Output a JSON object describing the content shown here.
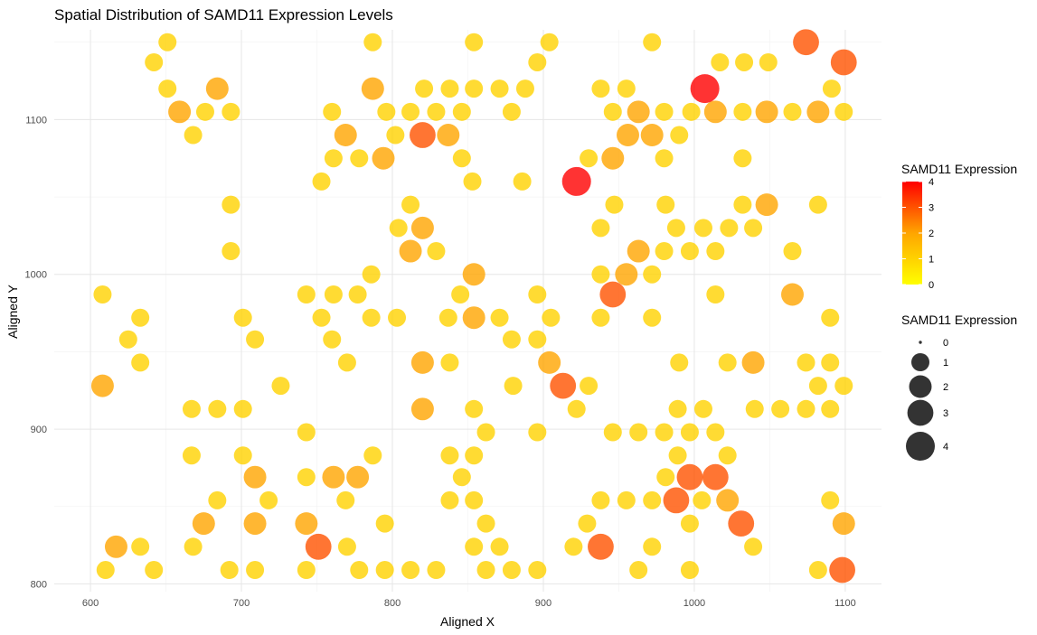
{
  "chart_data": {
    "type": "scatter",
    "title": "Spatial Distribution of SAMD11 Expression Levels",
    "xlabel": "Aligned X",
    "ylabel": "Aligned Y",
    "xlim": [
      576,
      1124
    ],
    "ylim": [
      795,
      1158
    ],
    "xticks": [
      600,
      700,
      800,
      900,
      1000,
      1100
    ],
    "yticks": [
      800,
      900,
      1000,
      1100
    ],
    "grid": true,
    "legend_position": "right",
    "color_legend": {
      "title": "SAMD11 Expression",
      "min": 0,
      "max": 4,
      "ticks": [
        0,
        1,
        2,
        3,
        4
      ],
      "colors": [
        "#FFFF00",
        "#FFA500",
        "#FF0000"
      ]
    },
    "size_legend": {
      "title": "SAMD11 Expression",
      "values": [
        0,
        1,
        2,
        3,
        4
      ]
    },
    "point_opacity": 0.8,
    "points": [
      [
        651,
        1150,
        1
      ],
      [
        787,
        1150,
        1
      ],
      [
        854,
        1150,
        1
      ],
      [
        904,
        1150,
        1
      ],
      [
        972,
        1150,
        1
      ],
      [
        1074,
        1150,
        3
      ],
      [
        642,
        1137,
        1
      ],
      [
        896,
        1137,
        1
      ],
      [
        1017,
        1137,
        1
      ],
      [
        1033,
        1137,
        1
      ],
      [
        1049,
        1137,
        1
      ],
      [
        1099,
        1137,
        3
      ],
      [
        651,
        1120,
        1
      ],
      [
        684,
        1120,
        2
      ],
      [
        787,
        1120,
        2
      ],
      [
        821,
        1120,
        1
      ],
      [
        838,
        1120,
        1
      ],
      [
        854,
        1120,
        1
      ],
      [
        871,
        1120,
        1
      ],
      [
        888,
        1120,
        1
      ],
      [
        938,
        1120,
        1
      ],
      [
        955,
        1120,
        1
      ],
      [
        1007,
        1120,
        4
      ],
      [
        1091,
        1120,
        1
      ],
      [
        659,
        1105,
        2
      ],
      [
        676,
        1105,
        1
      ],
      [
        693,
        1105,
        1
      ],
      [
        760,
        1105,
        1
      ],
      [
        796,
        1105,
        1
      ],
      [
        812,
        1105,
        1
      ],
      [
        829,
        1105,
        1
      ],
      [
        846,
        1105,
        1
      ],
      [
        879,
        1105,
        1
      ],
      [
        946,
        1105,
        1
      ],
      [
        963,
        1105,
        2
      ],
      [
        980,
        1105,
        1
      ],
      [
        998,
        1105,
        1
      ],
      [
        1014,
        1105,
        2
      ],
      [
        1032,
        1105,
        1
      ],
      [
        1048,
        1105,
        2
      ],
      [
        1065,
        1105,
        1
      ],
      [
        1082,
        1105,
        2
      ],
      [
        1099,
        1105,
        1
      ],
      [
        668,
        1090,
        1
      ],
      [
        769,
        1090,
        2
      ],
      [
        802,
        1090,
        1
      ],
      [
        820,
        1090,
        3
      ],
      [
        837,
        1090,
        2
      ],
      [
        956,
        1090,
        2
      ],
      [
        972,
        1090,
        2
      ],
      [
        990,
        1090,
        1
      ],
      [
        761,
        1075,
        1
      ],
      [
        778,
        1075,
        1
      ],
      [
        794,
        1075,
        2
      ],
      [
        846,
        1075,
        1
      ],
      [
        930,
        1075,
        1
      ],
      [
        946,
        1075,
        2
      ],
      [
        980,
        1075,
        1
      ],
      [
        1032,
        1075,
        1
      ],
      [
        753,
        1060,
        1
      ],
      [
        853,
        1060,
        1
      ],
      [
        886,
        1060,
        1
      ],
      [
        922,
        1060,
        4
      ],
      [
        693,
        1045,
        1
      ],
      [
        812,
        1045,
        1
      ],
      [
        947,
        1045,
        1
      ],
      [
        981,
        1045,
        1
      ],
      [
        1032,
        1045,
        1
      ],
      [
        1048,
        1045,
        2
      ],
      [
        1082,
        1045,
        1
      ],
      [
        804,
        1030,
        1
      ],
      [
        820,
        1030,
        2
      ],
      [
        938,
        1030,
        1
      ],
      [
        988,
        1030,
        1
      ],
      [
        1006,
        1030,
        1
      ],
      [
        1023,
        1030,
        1
      ],
      [
        1039,
        1030,
        1
      ],
      [
        693,
        1015,
        1
      ],
      [
        812,
        1015,
        2
      ],
      [
        829,
        1015,
        1
      ],
      [
        963,
        1015,
        2
      ],
      [
        980,
        1015,
        1
      ],
      [
        997,
        1015,
        1
      ],
      [
        1014,
        1015,
        1
      ],
      [
        1065,
        1015,
        1
      ],
      [
        786,
        1000,
        1
      ],
      [
        854,
        1000,
        2
      ],
      [
        938,
        1000,
        1
      ],
      [
        955,
        1000,
        2
      ],
      [
        972,
        1000,
        1
      ],
      [
        608,
        987,
        1
      ],
      [
        743,
        987,
        1
      ],
      [
        761,
        987,
        1
      ],
      [
        777,
        987,
        1
      ],
      [
        845,
        987,
        1
      ],
      [
        896,
        987,
        1
      ],
      [
        946,
        987,
        3
      ],
      [
        1014,
        987,
        1
      ],
      [
        1065,
        987,
        2
      ],
      [
        633,
        972,
        1
      ],
      [
        701,
        972,
        1
      ],
      [
        753,
        972,
        1
      ],
      [
        786,
        972,
        1
      ],
      [
        803,
        972,
        1
      ],
      [
        837,
        972,
        1
      ],
      [
        854,
        972,
        2
      ],
      [
        871,
        972,
        1
      ],
      [
        905,
        972,
        1
      ],
      [
        938,
        972,
        1
      ],
      [
        972,
        972,
        1
      ],
      [
        1090,
        972,
        1
      ],
      [
        625,
        958,
        1
      ],
      [
        709,
        958,
        1
      ],
      [
        760,
        958,
        1
      ],
      [
        879,
        958,
        1
      ],
      [
        896,
        958,
        1
      ],
      [
        633,
        943,
        1
      ],
      [
        770,
        943,
        1
      ],
      [
        820,
        943,
        2
      ],
      [
        838,
        943,
        1
      ],
      [
        904,
        943,
        2
      ],
      [
        990,
        943,
        1
      ],
      [
        1022,
        943,
        1
      ],
      [
        1039,
        943,
        2
      ],
      [
        1074,
        943,
        1
      ],
      [
        1090,
        943,
        1
      ],
      [
        608,
        928,
        2
      ],
      [
        726,
        928,
        1
      ],
      [
        880,
        928,
        1
      ],
      [
        913,
        928,
        3
      ],
      [
        930,
        928,
        1
      ],
      [
        1082,
        928,
        1
      ],
      [
        1099,
        928,
        1
      ],
      [
        667,
        913,
        1
      ],
      [
        684,
        913,
        1
      ],
      [
        701,
        913,
        1
      ],
      [
        820,
        913,
        2
      ],
      [
        854,
        913,
        1
      ],
      [
        922,
        913,
        1
      ],
      [
        989,
        913,
        1
      ],
      [
        1006,
        913,
        1
      ],
      [
        1040,
        913,
        1
      ],
      [
        1057,
        913,
        1
      ],
      [
        1074,
        913,
        1
      ],
      [
        1090,
        913,
        1
      ],
      [
        743,
        898,
        1
      ],
      [
        862,
        898,
        1
      ],
      [
        896,
        898,
        1
      ],
      [
        946,
        898,
        1
      ],
      [
        963,
        898,
        1
      ],
      [
        980,
        898,
        1
      ],
      [
        997,
        898,
        1
      ],
      [
        1014,
        898,
        1
      ],
      [
        667,
        883,
        1
      ],
      [
        701,
        883,
        1
      ],
      [
        787,
        883,
        1
      ],
      [
        838,
        883,
        1
      ],
      [
        854,
        883,
        1
      ],
      [
        989,
        883,
        1
      ],
      [
        1022,
        883,
        1
      ],
      [
        709,
        869,
        2
      ],
      [
        743,
        869,
        1
      ],
      [
        761,
        869,
        2
      ],
      [
        777,
        869,
        2
      ],
      [
        846,
        869,
        1
      ],
      [
        981,
        869,
        1
      ],
      [
        997,
        869,
        3
      ],
      [
        1014,
        869,
        3
      ],
      [
        684,
        854,
        1
      ],
      [
        718,
        854,
        1
      ],
      [
        769,
        854,
        1
      ],
      [
        838,
        854,
        1
      ],
      [
        854,
        854,
        1
      ],
      [
        938,
        854,
        1
      ],
      [
        955,
        854,
        1
      ],
      [
        972,
        854,
        1
      ],
      [
        988,
        854,
        3
      ],
      [
        1005,
        854,
        1
      ],
      [
        1022,
        854,
        2
      ],
      [
        1090,
        854,
        1
      ],
      [
        675,
        839,
        2
      ],
      [
        709,
        839,
        2
      ],
      [
        743,
        839,
        2
      ],
      [
        795,
        839,
        1
      ],
      [
        862,
        839,
        1
      ],
      [
        929,
        839,
        1
      ],
      [
        997,
        839,
        1
      ],
      [
        1031,
        839,
        3
      ],
      [
        1099,
        839,
        2
      ],
      [
        617,
        824,
        2
      ],
      [
        633,
        824,
        1
      ],
      [
        668,
        824,
        1
      ],
      [
        751,
        824,
        3
      ],
      [
        770,
        824,
        1
      ],
      [
        854,
        824,
        1
      ],
      [
        871,
        824,
        1
      ],
      [
        920,
        824,
        1
      ],
      [
        938,
        824,
        3
      ],
      [
        972,
        824,
        1
      ],
      [
        1039,
        824,
        1
      ],
      [
        610,
        809,
        1
      ],
      [
        642,
        809,
        1
      ],
      [
        692,
        809,
        1
      ],
      [
        709,
        809,
        1
      ],
      [
        743,
        809,
        1
      ],
      [
        778,
        809,
        1
      ],
      [
        795,
        809,
        1
      ],
      [
        812,
        809,
        1
      ],
      [
        829,
        809,
        1
      ],
      [
        862,
        809,
        1
      ],
      [
        879,
        809,
        1
      ],
      [
        896,
        809,
        1
      ],
      [
        963,
        809,
        1
      ],
      [
        997,
        809,
        1
      ],
      [
        1082,
        809,
        1
      ],
      [
        1098,
        809,
        3
      ]
    ]
  }
}
